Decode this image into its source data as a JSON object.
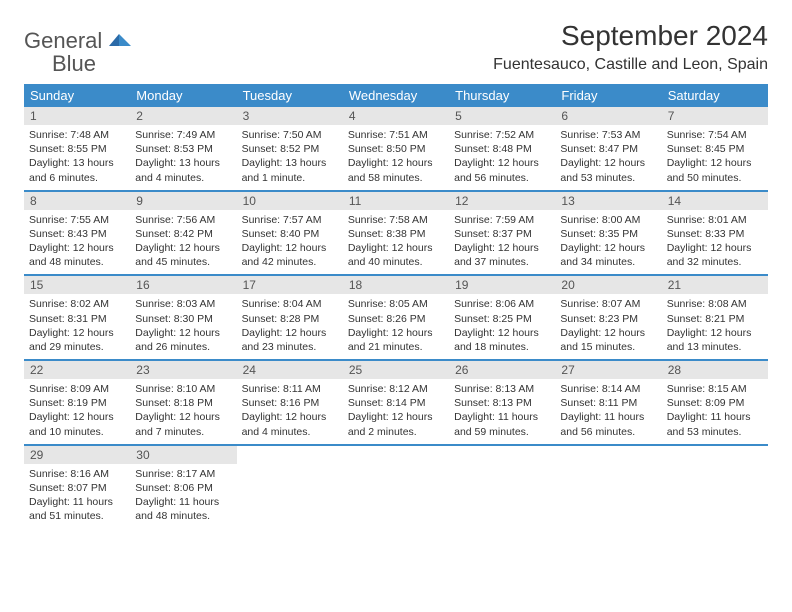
{
  "logo": {
    "word1": "General",
    "word2": "Blue"
  },
  "title": "September 2024",
  "location": "Fuentesauco, Castille and Leon, Spain",
  "colors": {
    "header_bg": "#3b8bc9",
    "header_text": "#ffffff",
    "daynum_bg": "#e6e6e6",
    "daynum_text": "#555555",
    "body_text": "#333333",
    "week_border": "#3b8bc9",
    "logo_gray": "#555555",
    "logo_blue": "#3b7bbf",
    "bg": "#ffffff"
  },
  "fonts": {
    "title_size": 28,
    "location_size": 16,
    "header_size": 13,
    "daynum_size": 12,
    "cell_size": 10.5
  },
  "days_of_week": [
    "Sunday",
    "Monday",
    "Tuesday",
    "Wednesday",
    "Thursday",
    "Friday",
    "Saturday"
  ],
  "weeks": [
    [
      {
        "n": "1",
        "sr": "7:48 AM",
        "ss": "8:55 PM",
        "dl": "13 hours and 6 minutes."
      },
      {
        "n": "2",
        "sr": "7:49 AM",
        "ss": "8:53 PM",
        "dl": "13 hours and 4 minutes."
      },
      {
        "n": "3",
        "sr": "7:50 AM",
        "ss": "8:52 PM",
        "dl": "13 hours and 1 minute."
      },
      {
        "n": "4",
        "sr": "7:51 AM",
        "ss": "8:50 PM",
        "dl": "12 hours and 58 minutes."
      },
      {
        "n": "5",
        "sr": "7:52 AM",
        "ss": "8:48 PM",
        "dl": "12 hours and 56 minutes."
      },
      {
        "n": "6",
        "sr": "7:53 AM",
        "ss": "8:47 PM",
        "dl": "12 hours and 53 minutes."
      },
      {
        "n": "7",
        "sr": "7:54 AM",
        "ss": "8:45 PM",
        "dl": "12 hours and 50 minutes."
      }
    ],
    [
      {
        "n": "8",
        "sr": "7:55 AM",
        "ss": "8:43 PM",
        "dl": "12 hours and 48 minutes."
      },
      {
        "n": "9",
        "sr": "7:56 AM",
        "ss": "8:42 PM",
        "dl": "12 hours and 45 minutes."
      },
      {
        "n": "10",
        "sr": "7:57 AM",
        "ss": "8:40 PM",
        "dl": "12 hours and 42 minutes."
      },
      {
        "n": "11",
        "sr": "7:58 AM",
        "ss": "8:38 PM",
        "dl": "12 hours and 40 minutes."
      },
      {
        "n": "12",
        "sr": "7:59 AM",
        "ss": "8:37 PM",
        "dl": "12 hours and 37 minutes."
      },
      {
        "n": "13",
        "sr": "8:00 AM",
        "ss": "8:35 PM",
        "dl": "12 hours and 34 minutes."
      },
      {
        "n": "14",
        "sr": "8:01 AM",
        "ss": "8:33 PM",
        "dl": "12 hours and 32 minutes."
      }
    ],
    [
      {
        "n": "15",
        "sr": "8:02 AM",
        "ss": "8:31 PM",
        "dl": "12 hours and 29 minutes."
      },
      {
        "n": "16",
        "sr": "8:03 AM",
        "ss": "8:30 PM",
        "dl": "12 hours and 26 minutes."
      },
      {
        "n": "17",
        "sr": "8:04 AM",
        "ss": "8:28 PM",
        "dl": "12 hours and 23 minutes."
      },
      {
        "n": "18",
        "sr": "8:05 AM",
        "ss": "8:26 PM",
        "dl": "12 hours and 21 minutes."
      },
      {
        "n": "19",
        "sr": "8:06 AM",
        "ss": "8:25 PM",
        "dl": "12 hours and 18 minutes."
      },
      {
        "n": "20",
        "sr": "8:07 AM",
        "ss": "8:23 PM",
        "dl": "12 hours and 15 minutes."
      },
      {
        "n": "21",
        "sr": "8:08 AM",
        "ss": "8:21 PM",
        "dl": "12 hours and 13 minutes."
      }
    ],
    [
      {
        "n": "22",
        "sr": "8:09 AM",
        "ss": "8:19 PM",
        "dl": "12 hours and 10 minutes."
      },
      {
        "n": "23",
        "sr": "8:10 AM",
        "ss": "8:18 PM",
        "dl": "12 hours and 7 minutes."
      },
      {
        "n": "24",
        "sr": "8:11 AM",
        "ss": "8:16 PM",
        "dl": "12 hours and 4 minutes."
      },
      {
        "n": "25",
        "sr": "8:12 AM",
        "ss": "8:14 PM",
        "dl": "12 hours and 2 minutes."
      },
      {
        "n": "26",
        "sr": "8:13 AM",
        "ss": "8:13 PM",
        "dl": "11 hours and 59 minutes."
      },
      {
        "n": "27",
        "sr": "8:14 AM",
        "ss": "8:11 PM",
        "dl": "11 hours and 56 minutes."
      },
      {
        "n": "28",
        "sr": "8:15 AM",
        "ss": "8:09 PM",
        "dl": "11 hours and 53 minutes."
      }
    ],
    [
      {
        "n": "29",
        "sr": "8:16 AM",
        "ss": "8:07 PM",
        "dl": "11 hours and 51 minutes."
      },
      {
        "n": "30",
        "sr": "8:17 AM",
        "ss": "8:06 PM",
        "dl": "11 hours and 48 minutes."
      },
      null,
      null,
      null,
      null,
      null
    ]
  ],
  "labels": {
    "sunrise": "Sunrise:",
    "sunset": "Sunset:",
    "daylight": "Daylight:"
  }
}
